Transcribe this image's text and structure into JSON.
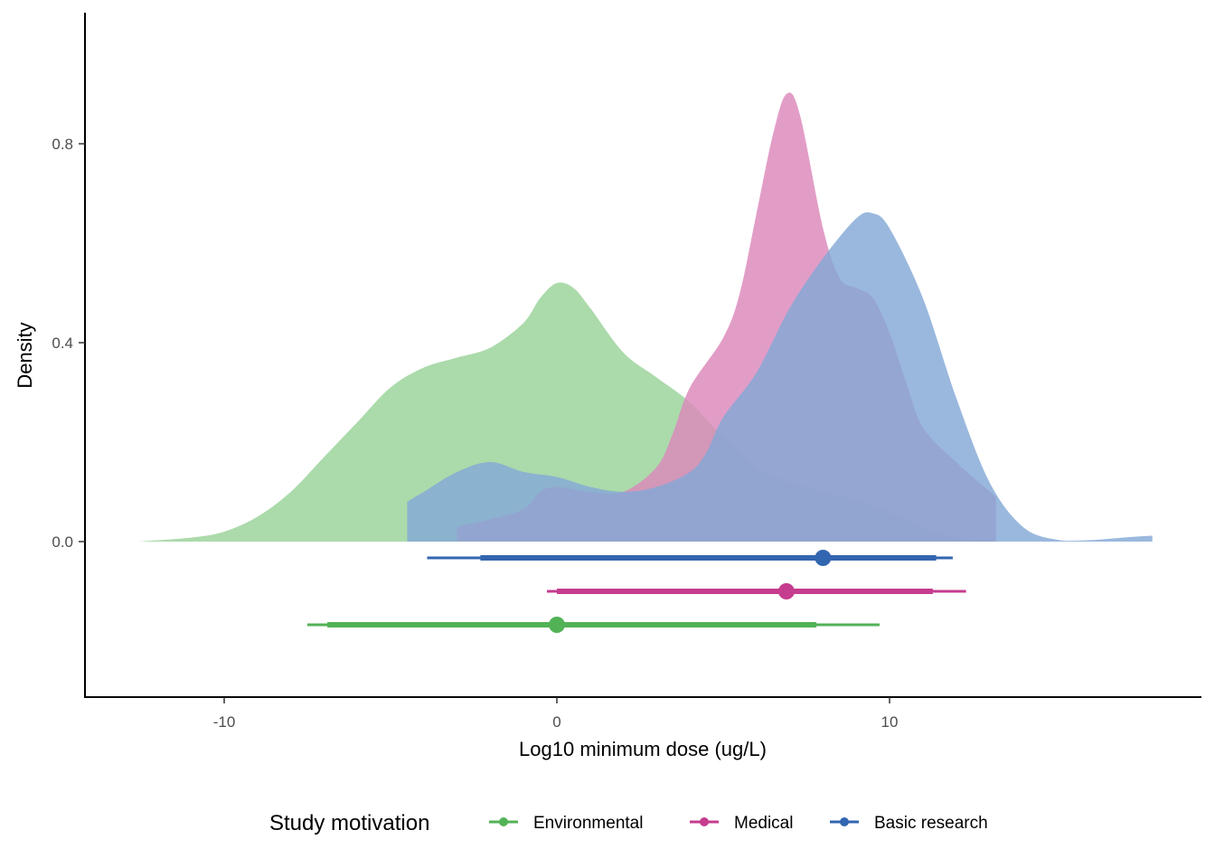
{
  "chart_data": {
    "type": "area",
    "title": "",
    "xlabel": "Log10 minimum dose (ug/L)",
    "ylabel": "Density",
    "xlim": [
      -13.2,
      19.3
    ],
    "ylim": [
      -0.31,
      1.05
    ],
    "x_ticks": [
      -10,
      0,
      10
    ],
    "x_tick_labels": [
      "-10",
      "0",
      "10"
    ],
    "y_ticks": [
      0.0,
      0.4,
      0.8
    ],
    "y_tick_labels": [
      "0.0",
      "0.4",
      "0.8"
    ],
    "grid": false,
    "legend": {
      "title": "Study motivation",
      "position": "bottom",
      "entries": [
        "Environmental",
        "Medical",
        "Basic research"
      ]
    },
    "series": [
      {
        "name": "Environmental",
        "color": "#52b256",
        "fill": "#99d299",
        "density": [
          [
            -12.6,
            0.0
          ],
          [
            -11,
            0.008
          ],
          [
            -10,
            0.02
          ],
          [
            -9,
            0.05
          ],
          [
            -8,
            0.1
          ],
          [
            -7,
            0.17
          ],
          [
            -6,
            0.24
          ],
          [
            -5,
            0.31
          ],
          [
            -4,
            0.35
          ],
          [
            -3,
            0.37
          ],
          [
            -2,
            0.39
          ],
          [
            -1,
            0.44
          ],
          [
            -0.5,
            0.49
          ],
          [
            0,
            0.52
          ],
          [
            0.5,
            0.51
          ],
          [
            1,
            0.47
          ],
          [
            2,
            0.38
          ],
          [
            3,
            0.33
          ],
          [
            4,
            0.28
          ],
          [
            5,
            0.21
          ],
          [
            6,
            0.15
          ],
          [
            7,
            0.12
          ],
          [
            8,
            0.1
          ],
          [
            9,
            0.085
          ],
          [
            10,
            0.06
          ],
          [
            11,
            0.03
          ],
          [
            12,
            0.01
          ],
          [
            13.2,
            0.0
          ]
        ],
        "interval_95": [
          -7.5,
          9.7
        ],
        "interval_66": [
          -6.9,
          7.8
        ],
        "point": 0.0
      },
      {
        "name": "Medical",
        "color": "#c63c8e",
        "fill": "#dc88bb",
        "density": [
          [
            -3.0,
            0.03
          ],
          [
            -2,
            0.045
          ],
          [
            -1,
            0.065
          ],
          [
            -0.5,
            0.1
          ],
          [
            0,
            0.11
          ],
          [
            1,
            0.1
          ],
          [
            2,
            0.1
          ],
          [
            3,
            0.15
          ],
          [
            3.5,
            0.22
          ],
          [
            4,
            0.31
          ],
          [
            5,
            0.41
          ],
          [
            5.5,
            0.5
          ],
          [
            6,
            0.66
          ],
          [
            6.5,
            0.82
          ],
          [
            6.9,
            0.9
          ],
          [
            7.3,
            0.86
          ],
          [
            8,
            0.63
          ],
          [
            8.5,
            0.53
          ],
          [
            9,
            0.51
          ],
          [
            9.5,
            0.49
          ],
          [
            10,
            0.42
          ],
          [
            10.5,
            0.32
          ],
          [
            11,
            0.23
          ],
          [
            12,
            0.16
          ],
          [
            13.2,
            0.09
          ]
        ],
        "interval_95": [
          -0.3,
          12.3
        ],
        "interval_66": [
          0.0,
          11.3
        ],
        "point": 6.9
      },
      {
        "name": "Basic research",
        "color": "#3366b0",
        "fill": "#84a8d6",
        "density": [
          [
            -4.5,
            0.08
          ],
          [
            -4,
            0.1
          ],
          [
            -3,
            0.14
          ],
          [
            -2,
            0.16
          ],
          [
            -1,
            0.14
          ],
          [
            0,
            0.13
          ],
          [
            1,
            0.11
          ],
          [
            2,
            0.1
          ],
          [
            3,
            0.11
          ],
          [
            4,
            0.14
          ],
          [
            4.5,
            0.18
          ],
          [
            5,
            0.25
          ],
          [
            6,
            0.34
          ],
          [
            7,
            0.47
          ],
          [
            8,
            0.57
          ],
          [
            9,
            0.65
          ],
          [
            9.5,
            0.66
          ],
          [
            10,
            0.63
          ],
          [
            11,
            0.49
          ],
          [
            12,
            0.29
          ],
          [
            13,
            0.12
          ],
          [
            14,
            0.03
          ],
          [
            15,
            0.004
          ],
          [
            16,
            0.003
          ],
          [
            17,
            0.008
          ],
          [
            17.9,
            0.012
          ]
        ],
        "interval_95": [
          -3.9,
          11.9
        ],
        "interval_66": [
          -2.3,
          11.4
        ],
        "point": 8.0
      }
    ]
  }
}
